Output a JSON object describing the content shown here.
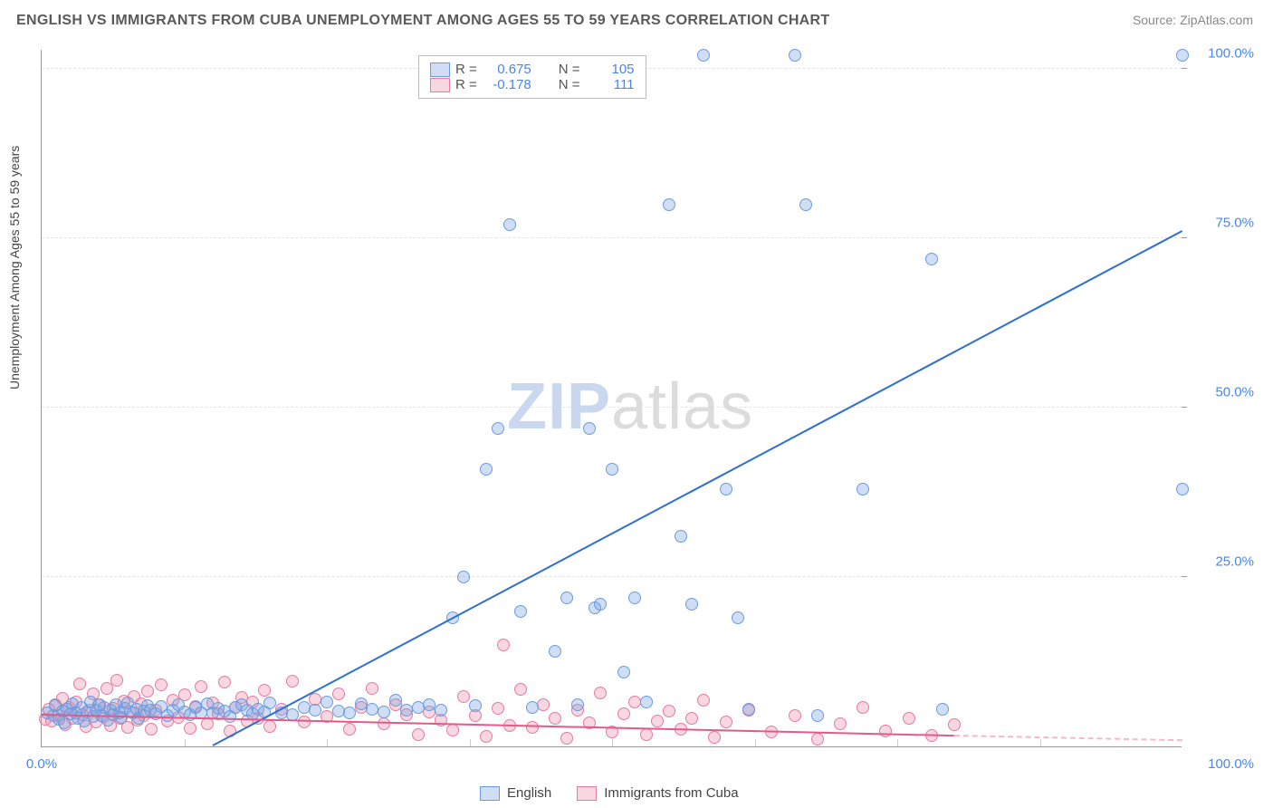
{
  "title": "ENGLISH VS IMMIGRANTS FROM CUBA UNEMPLOYMENT AMONG AGES 55 TO 59 YEARS CORRELATION CHART",
  "source": "Source: ZipAtlas.com",
  "watermark": {
    "z": "ZIP",
    "rest": "atlas"
  },
  "y_axis_label": "Unemployment Among Ages 55 to 59 years",
  "chart": {
    "type": "scatter",
    "xlim": [
      0,
      100
    ],
    "ylim": [
      0,
      103
    ],
    "x_ticks_labels": [
      {
        "pos": 0,
        "label": "0.0%"
      },
      {
        "pos": 100,
        "label": "100.0%"
      }
    ],
    "x_minor_ticks": [
      12.5,
      25,
      37.5,
      50,
      62.5,
      75,
      87.5
    ],
    "y_ticks": [
      {
        "pos": 25,
        "label": "25.0%"
      },
      {
        "pos": 50,
        "label": "50.0%"
      },
      {
        "pos": 75,
        "label": "75.0%"
      },
      {
        "pos": 100,
        "label": "100.0%"
      }
    ],
    "background_color": "#ffffff",
    "grid_color": "#e4e4e4",
    "tick_label_color": "#4a86e8",
    "series": {
      "english": {
        "label": "English",
        "color_fill": "rgba(120,160,225,0.35)",
        "color_stroke": "#6a9be0",
        "marker_radius": 7,
        "trend": {
          "x1": 15,
          "y1": 0,
          "x2": 100,
          "y2": 76,
          "color": "#2f6fd0",
          "width": 2
        },
        "stats": {
          "R": "0.675",
          "N": "105"
        },
        "points": [
          [
            0.5,
            5
          ],
          [
            1,
            4.5
          ],
          [
            1.2,
            6
          ],
          [
            1.5,
            4
          ],
          [
            1.8,
            5.2
          ],
          [
            2,
            3.5
          ],
          [
            2.2,
            5.5
          ],
          [
            2.5,
            4.8
          ],
          [
            2.7,
            6.3
          ],
          [
            3,
            5
          ],
          [
            3.2,
            4.2
          ],
          [
            3.5,
            5.8
          ],
          [
            3.7,
            3.8
          ],
          [
            4,
            5.1
          ],
          [
            4.3,
            6.6
          ],
          [
            4.5,
            4.4
          ],
          [
            4.8,
            5.3
          ],
          [
            5,
            6.1
          ],
          [
            5.2,
            4.6
          ],
          [
            5.5,
            5.7
          ],
          [
            5.8,
            3.9
          ],
          [
            6,
            5.4
          ],
          [
            6.3,
            4.7
          ],
          [
            6.5,
            6.2
          ],
          [
            6.8,
            5
          ],
          [
            7,
            4.3
          ],
          [
            7.3,
            5.6
          ],
          [
            7.5,
            6.4
          ],
          [
            8,
            4.9
          ],
          [
            8.3,
            5.5
          ],
          [
            8.5,
            4.1
          ],
          [
            9,
            5.2
          ],
          [
            9.3,
            6
          ],
          [
            9.5,
            5.3
          ],
          [
            10,
            4.8
          ],
          [
            10.5,
            5.9
          ],
          [
            11,
            4.5
          ],
          [
            11.5,
            5.4
          ],
          [
            12,
            6.2
          ],
          [
            12.5,
            5.1
          ],
          [
            13,
            4.7
          ],
          [
            13.5,
            5.8
          ],
          [
            14,
            5
          ],
          [
            14.5,
            6.3
          ],
          [
            15,
            4.9
          ],
          [
            15.5,
            5.6
          ],
          [
            16,
            5.2
          ],
          [
            16.5,
            4.4
          ],
          [
            17,
            5.7
          ],
          [
            17.5,
            6.1
          ],
          [
            18,
            5.3
          ],
          [
            18.5,
            4.8
          ],
          [
            19,
            5.5
          ],
          [
            19.5,
            5.1
          ],
          [
            20,
            6.4
          ],
          [
            21,
            5
          ],
          [
            22,
            4.7
          ],
          [
            23,
            5.8
          ],
          [
            24,
            5.3
          ],
          [
            25,
            6.5
          ],
          [
            26,
            5.2
          ],
          [
            27,
            4.9
          ],
          [
            28,
            6.3
          ],
          [
            29,
            5.5
          ],
          [
            30,
            5.1
          ],
          [
            31,
            6.8
          ],
          [
            32,
            5.4
          ],
          [
            33,
            5.7
          ],
          [
            34,
            6.2
          ],
          [
            35,
            5.3
          ],
          [
            36,
            19
          ],
          [
            37,
            25
          ],
          [
            38,
            6
          ],
          [
            39,
            41
          ],
          [
            40,
            47
          ],
          [
            41,
            77
          ],
          [
            42,
            20
          ],
          [
            43,
            5.8
          ],
          [
            45,
            14
          ],
          [
            46,
            22
          ],
          [
            47,
            6.2
          ],
          [
            48,
            47
          ],
          [
            48.5,
            20.5
          ],
          [
            49,
            21
          ],
          [
            50,
            41
          ],
          [
            51,
            11
          ],
          [
            52,
            22
          ],
          [
            53,
            6.5
          ],
          [
            55,
            80
          ],
          [
            56,
            31
          ],
          [
            57,
            21
          ],
          [
            58,
            102
          ],
          [
            60,
            38
          ],
          [
            61,
            19
          ],
          [
            62,
            5.5
          ],
          [
            66,
            102
          ],
          [
            67,
            80
          ],
          [
            68,
            4.5
          ],
          [
            72,
            38
          ],
          [
            78,
            72
          ],
          [
            79,
            5.5
          ],
          [
            100,
            102
          ],
          [
            100,
            38
          ]
        ]
      },
      "cuba": {
        "label": "Immigrants from Cuba",
        "color_fill": "rgba(235,140,170,0.35)",
        "color_stroke": "#e77aa0",
        "marker_radius": 7,
        "trend_solid": {
          "x1": 0,
          "y1": 4.6,
          "x2": 80,
          "y2": 1.5,
          "color": "#e35a8a",
          "width": 2
        },
        "trend_dashed": {
          "x1": 80,
          "y1": 1.5,
          "x2": 100,
          "y2": 0.8,
          "color": "#f2b9cc",
          "width": 2
        },
        "stats": {
          "R": "-0.178",
          "N": "111"
        },
        "points": [
          [
            0.3,
            4
          ],
          [
            0.6,
            5.5
          ],
          [
            0.9,
            3.8
          ],
          [
            1.2,
            6.2
          ],
          [
            1.5,
            4.5
          ],
          [
            1.8,
            7.1
          ],
          [
            2.1,
            3.2
          ],
          [
            2.4,
            5.8
          ],
          [
            2.7,
            4.1
          ],
          [
            3,
            6.5
          ],
          [
            3.3,
            9.2
          ],
          [
            3.6,
            4.7
          ],
          [
            3.9,
            2.9
          ],
          [
            4.2,
            5.3
          ],
          [
            4.5,
            7.8
          ],
          [
            4.8,
            3.6
          ],
          [
            5.1,
            6.1
          ],
          [
            5.4,
            4.4
          ],
          [
            5.7,
            8.5
          ],
          [
            6,
            3.1
          ],
          [
            6.3,
            5.6
          ],
          [
            6.6,
            9.8
          ],
          [
            6.9,
            4.2
          ],
          [
            7.2,
            6.7
          ],
          [
            7.5,
            2.8
          ],
          [
            7.8,
            5.1
          ],
          [
            8.1,
            7.4
          ],
          [
            8.4,
            3.9
          ],
          [
            8.7,
            6.3
          ],
          [
            9,
            4.6
          ],
          [
            9.3,
            8.1
          ],
          [
            9.6,
            2.5
          ],
          [
            10,
            5.4
          ],
          [
            10.5,
            9.1
          ],
          [
            11,
            3.7
          ],
          [
            11.5,
            6.8
          ],
          [
            12,
            4.3
          ],
          [
            12.5,
            7.6
          ],
          [
            13,
            2.7
          ],
          [
            13.5,
            5.9
          ],
          [
            14,
            8.8
          ],
          [
            14.5,
            3.4
          ],
          [
            15,
            6.4
          ],
          [
            15.5,
            4.8
          ],
          [
            16,
            9.5
          ],
          [
            16.5,
            2.3
          ],
          [
            17,
            5.7
          ],
          [
            17.5,
            7.2
          ],
          [
            18,
            3.8
          ],
          [
            18.5,
            6.6
          ],
          [
            19,
            4.1
          ],
          [
            19.5,
            8.3
          ],
          [
            20,
            2.9
          ],
          [
            21,
            5.5
          ],
          [
            22,
            9.7
          ],
          [
            23,
            3.6
          ],
          [
            24,
            6.9
          ],
          [
            25,
            4.4
          ],
          [
            26,
            7.8
          ],
          [
            27,
            2.6
          ],
          [
            28,
            5.8
          ],
          [
            29,
            8.6
          ],
          [
            30,
            3.3
          ],
          [
            31,
            6.2
          ],
          [
            32,
            4.7
          ],
          [
            33,
            1.8
          ],
          [
            34,
            5.1
          ],
          [
            35,
            3.9
          ],
          [
            36,
            2.4
          ],
          [
            37,
            7.3
          ],
          [
            38,
            4.5
          ],
          [
            39,
            1.5
          ],
          [
            40,
            5.6
          ],
          [
            40.5,
            15
          ],
          [
            41,
            3.1
          ],
          [
            42,
            8.4
          ],
          [
            43,
            2.8
          ],
          [
            44,
            6.1
          ],
          [
            45,
            4.2
          ],
          [
            46,
            1.2
          ],
          [
            47,
            5.4
          ],
          [
            48,
            3.5
          ],
          [
            49,
            7.9
          ],
          [
            50,
            2.1
          ],
          [
            51,
            4.8
          ],
          [
            52,
            6.5
          ],
          [
            53,
            1.7
          ],
          [
            54,
            3.8
          ],
          [
            55,
            5.2
          ],
          [
            56,
            2.5
          ],
          [
            57,
            4.1
          ],
          [
            58,
            6.8
          ],
          [
            59,
            1.4
          ],
          [
            60,
            3.6
          ],
          [
            62,
            5.3
          ],
          [
            64,
            2.2
          ],
          [
            66,
            4.6
          ],
          [
            68,
            1.1
          ],
          [
            70,
            3.4
          ],
          [
            72,
            5.7
          ],
          [
            74,
            2.3
          ],
          [
            76,
            4.1
          ],
          [
            78,
            1.6
          ],
          [
            80,
            3.2
          ]
        ]
      }
    }
  },
  "legend_box_rows": [
    {
      "swatch_fill": "rgba(120,160,225,0.35)",
      "swatch_stroke": "#6a9be0",
      "R_label": "R =",
      "R": "0.675",
      "N_label": "N =",
      "N": "105"
    },
    {
      "swatch_fill": "rgba(235,140,170,0.35)",
      "swatch_stroke": "#e77aa0",
      "R_label": "R =",
      "R": "-0.178",
      "N_label": "N =",
      "N": "111"
    }
  ],
  "bottom_legend": [
    {
      "swatch_fill": "rgba(120,160,225,0.35)",
      "swatch_stroke": "#6a9be0",
      "label": "English"
    },
    {
      "swatch_fill": "rgba(235,140,170,0.35)",
      "swatch_stroke": "#e77aa0",
      "label": "Immigrants from Cuba"
    }
  ]
}
